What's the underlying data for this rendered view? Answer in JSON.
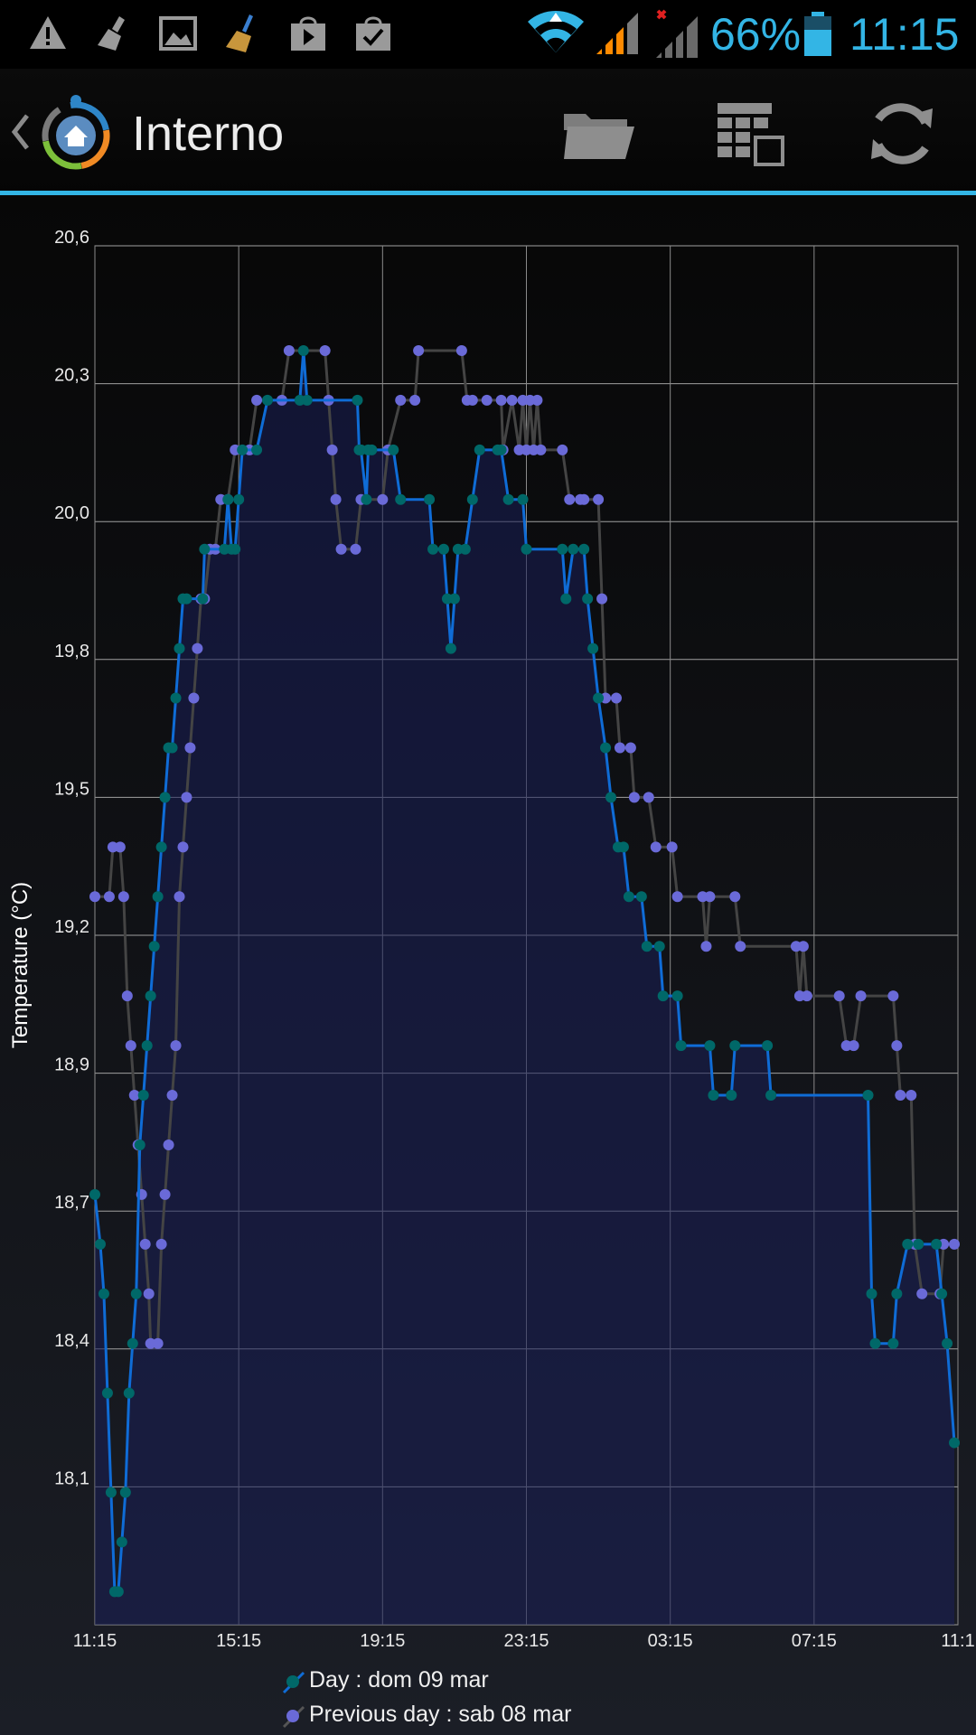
{
  "status_bar": {
    "notification_icons": [
      "warning-icon",
      "broom-icon",
      "image-icon",
      "clean-master-icon",
      "shopping-bag-icon",
      "task-bag-icon"
    ],
    "system_icons": [
      "wifi-icon",
      "signal-icon",
      "signal-no-service-icon",
      "battery-icon"
    ],
    "battery": "66%",
    "time": "11:15",
    "accent_color": "#33b5e5"
  },
  "action_bar": {
    "title": "Interno",
    "icons": [
      "back-chevron-icon",
      "home-logo-icon",
      "folder-icon",
      "calendar-icon",
      "refresh-icon"
    ]
  },
  "chart_data": {
    "type": "line",
    "title": "",
    "ylabel": "Temperature (°C)",
    "xlabel": "",
    "ylim": [
      18.1,
      20.6
    ],
    "y_ticks": [
      "20,6",
      "20,3",
      "20,0",
      "19,8",
      "19,5",
      "19,2",
      "18,9",
      "18,7",
      "18,4",
      "18,1"
    ],
    "y_tick_values": [
      20.6,
      20.35,
      20.1,
      19.85,
      19.6,
      19.35,
      19.1,
      18.85,
      18.6,
      18.35
    ],
    "x_ticks": [
      "11:15",
      "15:15",
      "19:15",
      "23:15",
      "03:15",
      "07:15",
      "11:1"
    ],
    "x_range_hours": [
      0,
      24
    ],
    "grid": true,
    "legend_position": "bottom",
    "series": [
      {
        "name": "Day : dom 09 mar",
        "line_color": "#0f6cd6",
        "marker_color": "#006868",
        "fill": true,
        "points": [
          [
            0.0,
            18.88
          ],
          [
            0.15,
            18.79
          ],
          [
            0.25,
            18.7
          ],
          [
            0.35,
            18.52
          ],
          [
            0.45,
            18.34
          ],
          [
            0.55,
            18.16
          ],
          [
            0.65,
            18.16
          ],
          [
            0.75,
            18.25
          ],
          [
            0.85,
            18.34
          ],
          [
            0.95,
            18.52
          ],
          [
            1.05,
            18.61
          ],
          [
            1.15,
            18.7
          ],
          [
            1.25,
            18.97
          ],
          [
            1.35,
            19.06
          ],
          [
            1.45,
            19.15
          ],
          [
            1.55,
            19.24
          ],
          [
            1.65,
            19.33
          ],
          [
            1.75,
            19.42
          ],
          [
            1.85,
            19.51
          ],
          [
            1.95,
            19.6
          ],
          [
            2.05,
            19.69
          ],
          [
            2.15,
            19.69
          ],
          [
            2.25,
            19.78
          ],
          [
            2.35,
            19.87
          ],
          [
            2.45,
            19.96
          ],
          [
            2.55,
            19.96
          ],
          [
            3.0,
            19.96
          ],
          [
            3.05,
            20.05
          ],
          [
            3.6,
            20.05
          ],
          [
            3.7,
            20.14
          ],
          [
            3.8,
            20.05
          ],
          [
            3.9,
            20.05
          ],
          [
            4.0,
            20.14
          ],
          [
            4.1,
            20.23
          ],
          [
            4.5,
            20.23
          ],
          [
            4.8,
            20.32
          ],
          [
            5.7,
            20.32
          ],
          [
            5.8,
            20.41
          ],
          [
            5.9,
            20.32
          ],
          [
            7.3,
            20.32
          ],
          [
            7.35,
            20.23
          ],
          [
            7.4,
            20.23
          ],
          [
            7.55,
            20.14
          ],
          [
            7.6,
            20.23
          ],
          [
            7.7,
            20.23
          ],
          [
            8.3,
            20.23
          ],
          [
            8.5,
            20.14
          ],
          [
            9.3,
            20.14
          ],
          [
            9.4,
            20.05
          ],
          [
            9.7,
            20.05
          ],
          [
            9.8,
            19.96
          ],
          [
            9.9,
            19.87
          ],
          [
            10.0,
            19.96
          ],
          [
            10.1,
            20.05
          ],
          [
            10.3,
            20.05
          ],
          [
            10.5,
            20.14
          ],
          [
            10.7,
            20.23
          ],
          [
            11.2,
            20.23
          ],
          [
            11.3,
            20.23
          ],
          [
            11.5,
            20.14
          ],
          [
            11.9,
            20.14
          ],
          [
            12.0,
            20.05
          ],
          [
            13.0,
            20.05
          ],
          [
            13.1,
            19.96
          ],
          [
            13.3,
            20.05
          ],
          [
            13.6,
            20.05
          ],
          [
            13.7,
            19.96
          ],
          [
            13.85,
            19.87
          ],
          [
            14.0,
            19.78
          ],
          [
            14.2,
            19.69
          ],
          [
            14.35,
            19.6
          ],
          [
            14.55,
            19.51
          ],
          [
            14.7,
            19.51
          ],
          [
            14.85,
            19.42
          ],
          [
            15.2,
            19.42
          ],
          [
            15.35,
            19.33
          ],
          [
            15.7,
            19.33
          ],
          [
            15.8,
            19.24
          ],
          [
            16.2,
            19.24
          ],
          [
            16.3,
            19.15
          ],
          [
            17.1,
            19.15
          ],
          [
            17.2,
            19.06
          ],
          [
            17.7,
            19.06
          ],
          [
            17.8,
            19.15
          ],
          [
            18.7,
            19.15
          ],
          [
            18.8,
            19.06
          ],
          [
            21.5,
            19.06
          ],
          [
            21.6,
            18.7
          ],
          [
            21.7,
            18.61
          ],
          [
            22.2,
            18.61
          ],
          [
            22.3,
            18.7
          ],
          [
            22.6,
            18.79
          ],
          [
            22.9,
            18.79
          ],
          [
            23.4,
            18.79
          ],
          [
            23.55,
            18.7
          ],
          [
            23.7,
            18.61
          ],
          [
            23.9,
            18.43
          ]
        ]
      },
      {
        "name": "Previous day : sab 08 mar",
        "line_color": "#444444",
        "marker_color": "#6a6ad8",
        "fill": false,
        "points": [
          [
            0.0,
            19.42
          ],
          [
            0.4,
            19.42
          ],
          [
            0.5,
            19.51
          ],
          [
            0.7,
            19.51
          ],
          [
            0.8,
            19.42
          ],
          [
            0.9,
            19.24
          ],
          [
            1.0,
            19.15
          ],
          [
            1.1,
            19.06
          ],
          [
            1.2,
            18.97
          ],
          [
            1.3,
            18.88
          ],
          [
            1.4,
            18.79
          ],
          [
            1.5,
            18.7
          ],
          [
            1.55,
            18.61
          ],
          [
            1.75,
            18.61
          ],
          [
            1.85,
            18.79
          ],
          [
            1.95,
            18.88
          ],
          [
            2.05,
            18.97
          ],
          [
            2.15,
            19.06
          ],
          [
            2.25,
            19.15
          ],
          [
            2.35,
            19.42
          ],
          [
            2.45,
            19.51
          ],
          [
            2.55,
            19.6
          ],
          [
            2.65,
            19.69
          ],
          [
            2.75,
            19.78
          ],
          [
            2.85,
            19.87
          ],
          [
            2.95,
            19.96
          ],
          [
            3.05,
            19.96
          ],
          [
            3.2,
            20.05
          ],
          [
            3.35,
            20.05
          ],
          [
            3.5,
            20.14
          ],
          [
            3.7,
            20.14
          ],
          [
            3.9,
            20.23
          ],
          [
            4.3,
            20.23
          ],
          [
            4.5,
            20.32
          ],
          [
            5.2,
            20.32
          ],
          [
            5.4,
            20.41
          ],
          [
            6.4,
            20.41
          ],
          [
            6.5,
            20.32
          ],
          [
            6.6,
            20.23
          ],
          [
            6.7,
            20.14
          ],
          [
            6.85,
            20.05
          ],
          [
            7.25,
            20.05
          ],
          [
            7.4,
            20.14
          ],
          [
            8.0,
            20.14
          ],
          [
            8.15,
            20.23
          ],
          [
            8.5,
            20.32
          ],
          [
            8.9,
            20.32
          ],
          [
            9.0,
            20.41
          ],
          [
            10.2,
            20.41
          ],
          [
            10.35,
            20.32
          ],
          [
            10.5,
            20.32
          ],
          [
            10.9,
            20.32
          ],
          [
            11.3,
            20.32
          ],
          [
            11.35,
            20.23
          ],
          [
            11.6,
            20.32
          ],
          [
            11.8,
            20.23
          ],
          [
            11.9,
            20.32
          ],
          [
            12.0,
            20.23
          ],
          [
            12.1,
            20.32
          ],
          [
            12.2,
            20.23
          ],
          [
            12.3,
            20.32
          ],
          [
            12.4,
            20.23
          ],
          [
            13.0,
            20.23
          ],
          [
            13.2,
            20.14
          ],
          [
            13.5,
            20.14
          ],
          [
            13.6,
            20.14
          ],
          [
            14.0,
            20.14
          ],
          [
            14.1,
            19.96
          ],
          [
            14.2,
            19.78
          ],
          [
            14.5,
            19.78
          ],
          [
            14.6,
            19.69
          ],
          [
            14.9,
            19.69
          ],
          [
            15.0,
            19.6
          ],
          [
            15.4,
            19.6
          ],
          [
            15.6,
            19.51
          ],
          [
            16.05,
            19.51
          ],
          [
            16.2,
            19.42
          ],
          [
            16.9,
            19.42
          ],
          [
            17.0,
            19.33
          ],
          [
            17.1,
            19.42
          ],
          [
            17.8,
            19.42
          ],
          [
            17.95,
            19.33
          ],
          [
            19.5,
            19.33
          ],
          [
            19.6,
            19.24
          ],
          [
            19.7,
            19.33
          ],
          [
            19.8,
            19.24
          ],
          [
            20.7,
            19.24
          ],
          [
            20.9,
            19.15
          ],
          [
            21.1,
            19.15
          ],
          [
            21.3,
            19.24
          ],
          [
            22.2,
            19.24
          ],
          [
            22.3,
            19.15
          ],
          [
            22.4,
            19.06
          ],
          [
            22.7,
            19.06
          ],
          [
            22.8,
            18.79
          ],
          [
            23.0,
            18.7
          ],
          [
            23.5,
            18.7
          ],
          [
            23.6,
            18.79
          ],
          [
            23.9,
            18.79
          ]
        ]
      }
    ]
  }
}
